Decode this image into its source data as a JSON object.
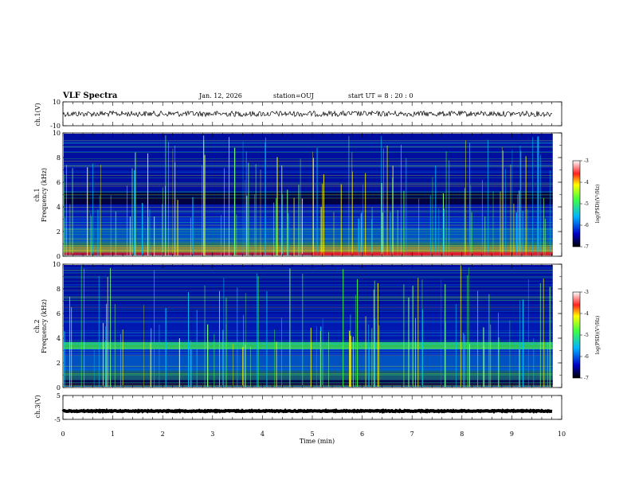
{
  "header": {
    "title": "VLF Spectra",
    "date": "Jan. 12, 2026",
    "station": "station=OUJ",
    "start_time": "start  UT =  8 : 20 : 0"
  },
  "chart_data": {
    "type": "heatmap",
    "x": {
      "label": "Time  (min)",
      "range": [
        0,
        10
      ],
      "ticks": [
        "0",
        "1",
        "2",
        "3",
        "4",
        "5",
        "6",
        "7",
        "8",
        "9",
        "10"
      ]
    },
    "panels": [
      {
        "name": "ch1-waveform",
        "type": "line",
        "ylabel": "ch.1(V)",
        "ylim": [
          -10,
          10
        ],
        "yticks": [
          "10",
          "-10"
        ],
        "baseline": 0
      },
      {
        "name": "ch1-spectrogram",
        "type": "heatmap",
        "ylabel": "ch.1\nFrequency  (kHz)",
        "ylabel_lines": [
          "ch.1",
          "Frequency  (kHz)"
        ],
        "ylim": [
          0,
          10
        ],
        "yticks": [
          "0",
          "2",
          "4",
          "6",
          "8",
          "10"
        ]
      },
      {
        "name": "ch2-spectrogram",
        "type": "heatmap",
        "ylabel_lines": [
          "ch.2",
          "Frequency  (kHz)"
        ],
        "ylim": [
          0,
          10
        ],
        "yticks": [
          "0",
          "2",
          "4",
          "6",
          "8",
          "10"
        ]
      },
      {
        "name": "ch3-waveform",
        "type": "line",
        "ylabel": "ch.3(V)",
        "ylim": [
          -5,
          5
        ],
        "yticks": [
          "5",
          "-5"
        ],
        "baseline": -1.5
      }
    ],
    "colorbar": {
      "label": "log(PSD)(V²/Hz)",
      "range": [
        -7,
        -3
      ],
      "ticks": [
        "-3",
        "-4",
        "-5",
        "-6",
        "-7"
      ]
    },
    "colors": {
      "background": "#000080",
      "low": "#0000c0",
      "mid": "#00c8ff",
      "green": "#40ff40",
      "yellow": "#ffff00",
      "red": "#ff2020"
    }
  }
}
